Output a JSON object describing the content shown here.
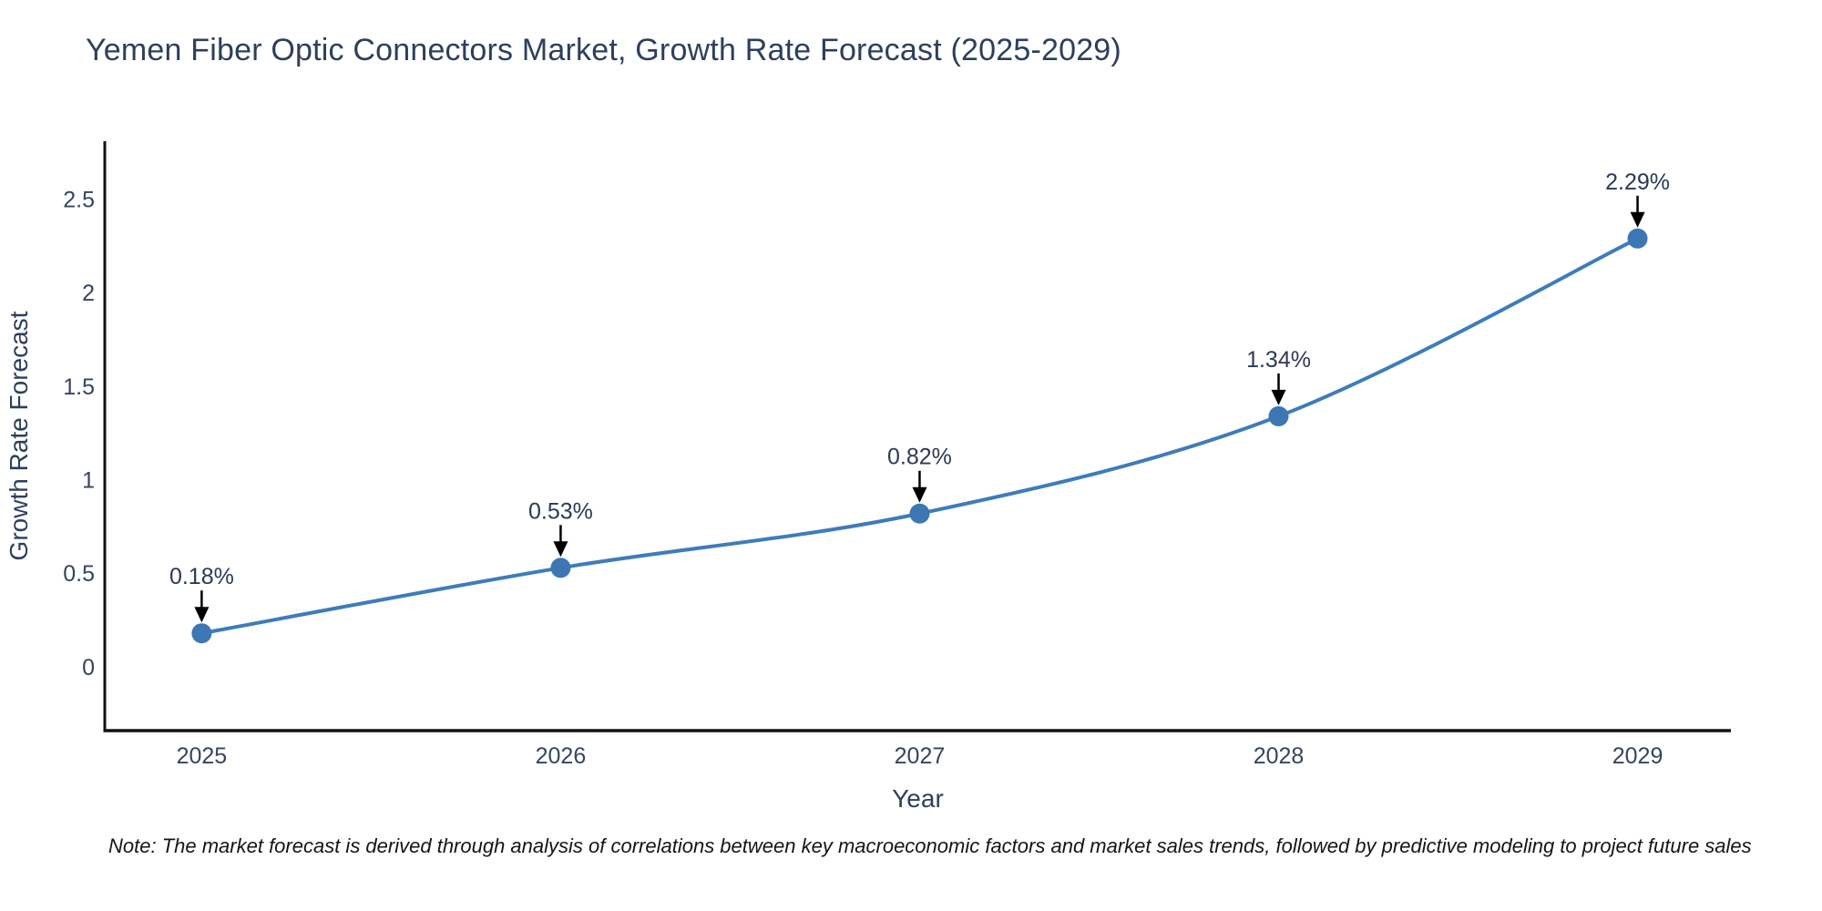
{
  "header": {
    "title": "Yemen Fiber Optic Connectors Market, Growth Rate Forecast (2025-2029)"
  },
  "footer": {
    "note": "Note: The market forecast is derived through analysis of correlations between key macroeconomic factors and market sales trends, followed by predictive modeling to project future sales"
  },
  "chart_data": {
    "type": "line",
    "title": "Yemen Fiber Optic Connectors Market, Growth Rate Forecast (2025-2029)",
    "xlabel": "Year",
    "ylabel": "Growth Rate Forecast",
    "x": [
      2025,
      2026,
      2027,
      2028,
      2029
    ],
    "categories": [
      "2025",
      "2026",
      "2027",
      "2028",
      "2029"
    ],
    "series": [
      {
        "name": "Growth Rate Forecast",
        "values": [
          0.18,
          0.53,
          0.82,
          1.34,
          2.29
        ]
      }
    ],
    "point_labels": [
      "0.18%",
      "0.53%",
      "0.82%",
      "1.34%",
      "2.29%"
    ],
    "ytick_labels": [
      "0",
      "0.5",
      "1",
      "1.5",
      "2",
      "2.5"
    ],
    "ytick_values": [
      0,
      0.5,
      1,
      1.5,
      2,
      2.5
    ],
    "ylim": [
      -0.34,
      2.81
    ],
    "xlim": [
      2024.73,
      2029.26
    ],
    "grid": false,
    "legend": false,
    "line_style": "spline",
    "marker_radius": 11,
    "line_width": 4,
    "colors": {
      "line": "#3e7cba",
      "marker": "#3c77b3",
      "axis": "#111111",
      "arrow": "#000000",
      "tick_text": "#36455e",
      "annotation_text": "#2b3a55",
      "title_text": "#2e3f5c"
    }
  }
}
